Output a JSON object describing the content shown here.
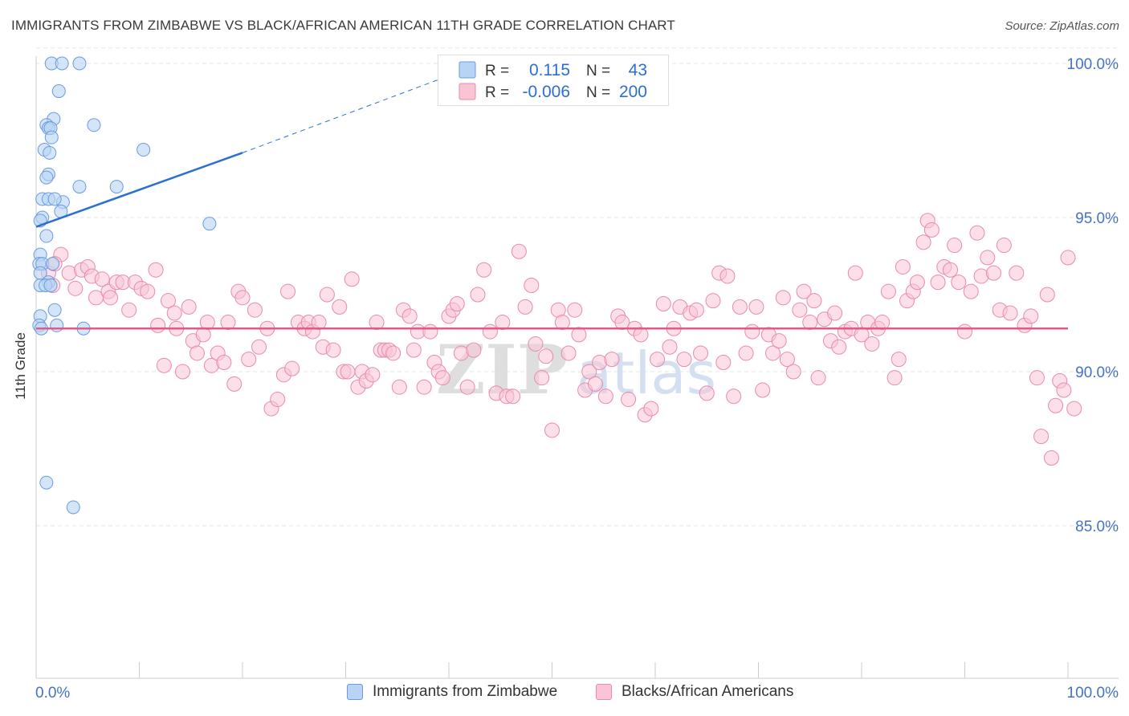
{
  "title": "IMMIGRANTS FROM ZIMBABWE VS BLACK/AFRICAN AMERICAN 11TH GRADE CORRELATION CHART",
  "source": "Source: ZipAtlas.com",
  "watermark": {
    "zip": "ZIP",
    "atlas": "atlas"
  },
  "colors": {
    "blue_fill": "#b8d3f3",
    "blue_stroke": "#6a9be0",
    "blue_line": "#2a6fd1",
    "pink_fill": "#f9c5d5",
    "pink_stroke": "#e88aaa",
    "pink_line": "#e05a88",
    "axis_label": "#4472c4",
    "grid": "#e6e6e6"
  },
  "legend": {
    "r_label": "R =",
    "n_label": "N =",
    "series": [
      {
        "r": "0.115",
        "n": "43"
      },
      {
        "r": "-0.006",
        "n": "200"
      }
    ]
  },
  "bottom_legend": [
    "Immigrants from Zimbabwe",
    "Blacks/African Americans"
  ],
  "chart_data": {
    "type": "scatter",
    "title": "IMMIGRANTS FROM ZIMBABWE VS BLACK/AFRICAN AMERICAN 11TH GRADE CORRELATION CHART",
    "xlabel": "",
    "ylabel": "11th Grade",
    "xlim": [
      0,
      100
    ],
    "ylim": [
      80,
      101
    ],
    "x_tick_labels": [
      "0.0%",
      "100.0%"
    ],
    "y_ticks": [
      100,
      95,
      90,
      85
    ],
    "y_tick_labels": [
      "100.0%",
      "95.0%",
      "90.0%",
      "85.0%"
    ],
    "series": [
      {
        "name": "Immigrants from Zimbabwe",
        "color": "blue",
        "trend": {
          "x0": 0,
          "y0": 94.7,
          "x1": 20,
          "y1": 97.1,
          "dash_to_x": 40,
          "dash_to_y": 99.6
        },
        "points": [
          [
            1.5,
            100
          ],
          [
            2.5,
            100
          ],
          [
            4.2,
            100
          ],
          [
            2.2,
            99.1
          ],
          [
            1.7,
            98.2
          ],
          [
            1.0,
            98.0
          ],
          [
            1.2,
            97.9
          ],
          [
            1.4,
            97.9
          ],
          [
            5.6,
            98.0
          ],
          [
            1.5,
            97.6
          ],
          [
            0.8,
            97.2
          ],
          [
            1.3,
            97.1
          ],
          [
            10.4,
            97.2
          ],
          [
            1.2,
            96.4
          ],
          [
            1.0,
            96.3
          ],
          [
            4.2,
            96.0
          ],
          [
            7.8,
            96.0
          ],
          [
            0.6,
            95.6
          ],
          [
            1.2,
            95.6
          ],
          [
            2.6,
            95.5
          ],
          [
            1.8,
            95.6
          ],
          [
            2.4,
            95.2
          ],
          [
            0.6,
            95.0
          ],
          [
            0.4,
            94.9
          ],
          [
            16.8,
            94.8
          ],
          [
            1.0,
            94.4
          ],
          [
            0.4,
            93.8
          ],
          [
            0.3,
            93.5
          ],
          [
            0.6,
            93.5
          ],
          [
            1.6,
            93.5
          ],
          [
            0.4,
            93.2
          ],
          [
            1.2,
            92.9
          ],
          [
            0.4,
            92.8
          ],
          [
            0.9,
            92.8
          ],
          [
            1.4,
            92.8
          ],
          [
            1.8,
            92.0
          ],
          [
            0.4,
            91.8
          ],
          [
            0.3,
            91.5
          ],
          [
            0.5,
            91.4
          ],
          [
            2.0,
            91.5
          ],
          [
            4.6,
            91.4
          ],
          [
            1.0,
            86.4
          ],
          [
            3.6,
            85.6
          ]
        ]
      },
      {
        "name": "Blacks/African Americans",
        "color": "pink",
        "trend": {
          "x0": 0,
          "y0": 91.4,
          "x1": 100,
          "y1": 91.4
        },
        "points": [
          [
            1.2,
            93.2
          ],
          [
            1.6,
            92.8
          ],
          [
            2.4,
            93.8
          ],
          [
            1.8,
            93.5
          ],
          [
            3.2,
            93.2
          ],
          [
            3.8,
            92.7
          ],
          [
            4.4,
            93.3
          ],
          [
            5.0,
            93.4
          ],
          [
            5.4,
            93.1
          ],
          [
            5.8,
            92.4
          ],
          [
            6.4,
            93.0
          ],
          [
            7.0,
            92.6
          ],
          [
            7.2,
            92.4
          ],
          [
            7.8,
            92.9
          ],
          [
            8.4,
            92.9
          ],
          [
            9.0,
            92.0
          ],
          [
            9.6,
            92.9
          ],
          [
            10.2,
            92.7
          ],
          [
            10.8,
            92.6
          ],
          [
            11.6,
            93.3
          ],
          [
            11.8,
            91.5
          ],
          [
            12.4,
            90.2
          ],
          [
            12.8,
            92.3
          ],
          [
            13.4,
            91.9
          ],
          [
            13.6,
            91.4
          ],
          [
            14.2,
            90.0
          ],
          [
            14.8,
            92.1
          ],
          [
            15.2,
            91.0
          ],
          [
            15.6,
            90.6
          ],
          [
            16.2,
            91.2
          ],
          [
            16.6,
            91.6
          ],
          [
            17.0,
            90.2
          ],
          [
            17.6,
            90.6
          ],
          [
            18.2,
            90.3
          ],
          [
            18.6,
            91.6
          ],
          [
            19.2,
            89.6
          ],
          [
            19.6,
            92.6
          ],
          [
            20.0,
            92.4
          ],
          [
            20.6,
            90.4
          ],
          [
            21.2,
            92.0
          ],
          [
            21.6,
            90.8
          ],
          [
            22.4,
            91.4
          ],
          [
            22.8,
            88.8
          ],
          [
            23.4,
            89.1
          ],
          [
            24.0,
            89.9
          ],
          [
            24.4,
            92.6
          ],
          [
            24.8,
            90.1
          ],
          [
            25.4,
            91.6
          ],
          [
            26.0,
            91.4
          ],
          [
            26.4,
            91.6
          ],
          [
            26.8,
            91.3
          ],
          [
            27.4,
            91.6
          ],
          [
            27.8,
            90.8
          ],
          [
            28.2,
            92.5
          ],
          [
            28.8,
            90.7
          ],
          [
            29.4,
            92.1
          ],
          [
            29.8,
            90.0
          ],
          [
            30.2,
            90.0
          ],
          [
            30.6,
            93.0
          ],
          [
            31.2,
            89.5
          ],
          [
            31.6,
            90.0
          ],
          [
            32.0,
            89.7
          ],
          [
            32.6,
            89.9
          ],
          [
            33.0,
            91.6
          ],
          [
            33.4,
            90.7
          ],
          [
            33.8,
            90.7
          ],
          [
            34.2,
            90.7
          ],
          [
            34.6,
            90.6
          ],
          [
            35.2,
            89.5
          ],
          [
            35.6,
            92.0
          ],
          [
            36.2,
            91.8
          ],
          [
            36.6,
            90.7
          ],
          [
            37.0,
            91.3
          ],
          [
            37.6,
            89.5
          ],
          [
            38.2,
            91.3
          ],
          [
            38.6,
            90.3
          ],
          [
            39.0,
            90.0
          ],
          [
            39.4,
            89.8
          ],
          [
            40.0,
            91.8
          ],
          [
            40.4,
            92.0
          ],
          [
            40.8,
            92.2
          ],
          [
            41.2,
            90.6
          ],
          [
            41.8,
            89.5
          ],
          [
            42.4,
            90.7
          ],
          [
            42.8,
            92.5
          ],
          [
            43.4,
            93.3
          ],
          [
            44.0,
            91.3
          ],
          [
            44.6,
            89.3
          ],
          [
            45.2,
            91.6
          ],
          [
            45.6,
            89.2
          ],
          [
            46.2,
            89.2
          ],
          [
            46.8,
            93.9
          ],
          [
            47.4,
            92.1
          ],
          [
            48.0,
            92.8
          ],
          [
            48.4,
            90.9
          ],
          [
            49.0,
            89.8
          ],
          [
            49.4,
            90.5
          ],
          [
            50.0,
            88.1
          ],
          [
            50.6,
            92.0
          ],
          [
            51.0,
            91.6
          ],
          [
            51.6,
            90.6
          ],
          [
            52.2,
            92.0
          ],
          [
            52.6,
            91.2
          ],
          [
            53.2,
            89.4
          ],
          [
            53.6,
            90.0
          ],
          [
            54.2,
            89.6
          ],
          [
            54.6,
            90.3
          ],
          [
            55.2,
            89.2
          ],
          [
            55.8,
            90.4
          ],
          [
            56.4,
            91.8
          ],
          [
            56.8,
            91.6
          ],
          [
            57.4,
            89.1
          ],
          [
            58.0,
            91.4
          ],
          [
            58.6,
            91.2
          ],
          [
            59.0,
            88.6
          ],
          [
            59.6,
            88.8
          ],
          [
            60.2,
            90.4
          ],
          [
            60.8,
            92.2
          ],
          [
            61.4,
            90.8
          ],
          [
            61.8,
            91.4
          ],
          [
            62.4,
            92.1
          ],
          [
            62.8,
            90.4
          ],
          [
            63.4,
            91.9
          ],
          [
            64.0,
            92.0
          ],
          [
            64.4,
            90.6
          ],
          [
            65.0,
            89.3
          ],
          [
            65.6,
            92.3
          ],
          [
            66.2,
            93.2
          ],
          [
            66.6,
            90.3
          ],
          [
            67.0,
            93.1
          ],
          [
            67.6,
            89.2
          ],
          [
            68.2,
            92.1
          ],
          [
            68.8,
            90.6
          ],
          [
            69.4,
            91.3
          ],
          [
            69.8,
            92.1
          ],
          [
            70.4,
            89.4
          ],
          [
            71.0,
            91.2
          ],
          [
            71.4,
            90.6
          ],
          [
            72.0,
            91.0
          ],
          [
            72.4,
            92.4
          ],
          [
            72.8,
            90.4
          ],
          [
            73.4,
            90.0
          ],
          [
            74.0,
            92.0
          ],
          [
            74.4,
            92.6
          ],
          [
            75.0,
            91.6
          ],
          [
            75.4,
            92.3
          ],
          [
            75.8,
            89.8
          ],
          [
            76.4,
            91.7
          ],
          [
            77.0,
            91.0
          ],
          [
            77.4,
            91.9
          ],
          [
            77.8,
            90.8
          ],
          [
            78.4,
            91.3
          ],
          [
            79.0,
            91.4
          ],
          [
            79.4,
            93.2
          ],
          [
            80.0,
            91.2
          ],
          [
            80.6,
            91.6
          ],
          [
            81.0,
            90.9
          ],
          [
            81.6,
            91.4
          ],
          [
            82.0,
            91.6
          ],
          [
            82.6,
            92.6
          ],
          [
            83.2,
            89.8
          ],
          [
            83.6,
            90.4
          ],
          [
            84.0,
            93.4
          ],
          [
            84.4,
            92.3
          ],
          [
            85.0,
            92.6
          ],
          [
            85.4,
            92.9
          ],
          [
            86.0,
            94.2
          ],
          [
            86.4,
            94.9
          ],
          [
            86.8,
            94.6
          ],
          [
            87.4,
            92.9
          ],
          [
            88.0,
            93.4
          ],
          [
            88.6,
            93.3
          ],
          [
            89.0,
            94.1
          ],
          [
            89.4,
            92.9
          ],
          [
            90.0,
            91.3
          ],
          [
            90.6,
            92.6
          ],
          [
            91.2,
            94.5
          ],
          [
            91.6,
            93.1
          ],
          [
            92.2,
            93.7
          ],
          [
            92.8,
            93.2
          ],
          [
            93.4,
            92.0
          ],
          [
            93.8,
            94.1
          ],
          [
            94.4,
            91.9
          ],
          [
            95.0,
            93.2
          ],
          [
            95.8,
            91.5
          ],
          [
            96.4,
            91.8
          ],
          [
            97.0,
            89.8
          ],
          [
            97.4,
            87.9
          ],
          [
            98.0,
            92.5
          ],
          [
            98.4,
            87.2
          ],
          [
            98.8,
            88.9
          ],
          [
            99.2,
            89.7
          ],
          [
            99.6,
            89.4
          ],
          [
            100.0,
            93.7
          ],
          [
            100.6,
            88.8
          ]
        ]
      }
    ]
  }
}
